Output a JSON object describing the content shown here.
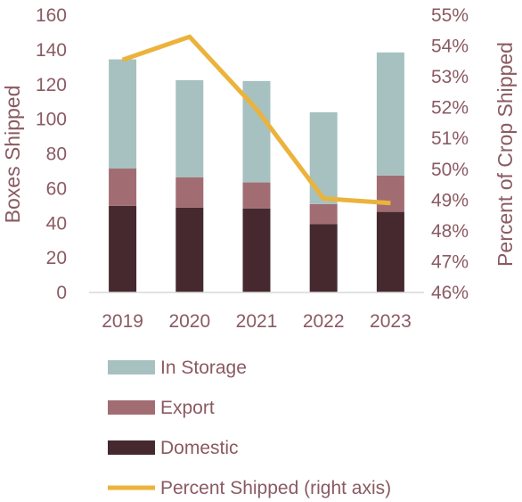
{
  "chart_data": {
    "type": "bar",
    "stacked": true,
    "categories": [
      "2019",
      "2020",
      "2021",
      "2022",
      "2023"
    ],
    "series": [
      {
        "name": "Domestic",
        "values": [
          50,
          49,
          48.5,
          39.5,
          46.5
        ],
        "color": "#45292f"
      },
      {
        "name": "Export",
        "values": [
          21.5,
          17.5,
          15,
          11.5,
          21
        ],
        "color": "#a26d72"
      },
      {
        "name": "In Storage",
        "values": [
          63,
          56,
          58.5,
          53,
          71
        ],
        "color": "#a6c1c0"
      }
    ],
    "line_series": {
      "name": "Percent Shipped (right axis)",
      "axis": "right",
      "values": [
        53.55,
        54.3,
        51.95,
        49.05,
        48.9
      ],
      "color": "#ebb33c"
    },
    "ylabel": "Boxes Shipped",
    "ylim": [
      0,
      160
    ],
    "yticks": [
      "0",
      "20",
      "40",
      "60",
      "80",
      "100",
      "120",
      "140",
      "160"
    ],
    "y2label": "Percent of Crop Shipped",
    "y2lim": [
      46,
      55
    ],
    "y2ticks": [
      "46%",
      "47%",
      "48%",
      "49%",
      "50%",
      "51%",
      "52%",
      "53%",
      "54%",
      "55%"
    ],
    "legend": {
      "placement": "bottom",
      "entries": [
        {
          "label": "In Storage",
          "color": "#a6c1c0",
          "kind": "box"
        },
        {
          "label": "Export",
          "color": "#a26d72",
          "kind": "box"
        },
        {
          "label": "Domestic",
          "color": "#45292f",
          "kind": "box"
        },
        {
          "label": "Percent Shipped (right axis)",
          "color": "#ebb33c",
          "kind": "line"
        }
      ]
    },
    "grid": false
  }
}
